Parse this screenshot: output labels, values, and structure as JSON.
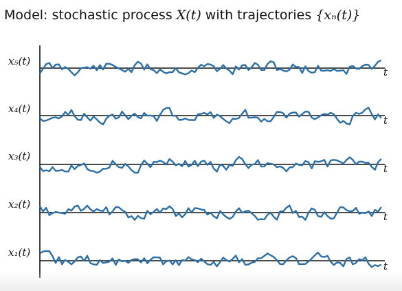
{
  "title": {
    "prefix": "Model: stochastic process ",
    "process": "X(t)",
    "middle": " with trajectories ",
    "set": "{xₙ(t)}"
  },
  "trajectories": [
    {
      "label": "x₅(t)",
      "axis_label": "t",
      "color": "#2b6fa8"
    },
    {
      "label": "x₄(t)",
      "axis_label": "t",
      "color": "#2b6fa8"
    },
    {
      "label": "x₃(t)",
      "axis_label": "t",
      "color": "#2b6fa8"
    },
    {
      "label": "x₂(t)",
      "axis_label": "t",
      "color": "#2b6fa8"
    },
    {
      "label": "x₁(t)",
      "axis_label": "t",
      "color": "#2b6fa8"
    }
  ],
  "line_color": "#2b6fa8",
  "axis_color": "#111111"
}
